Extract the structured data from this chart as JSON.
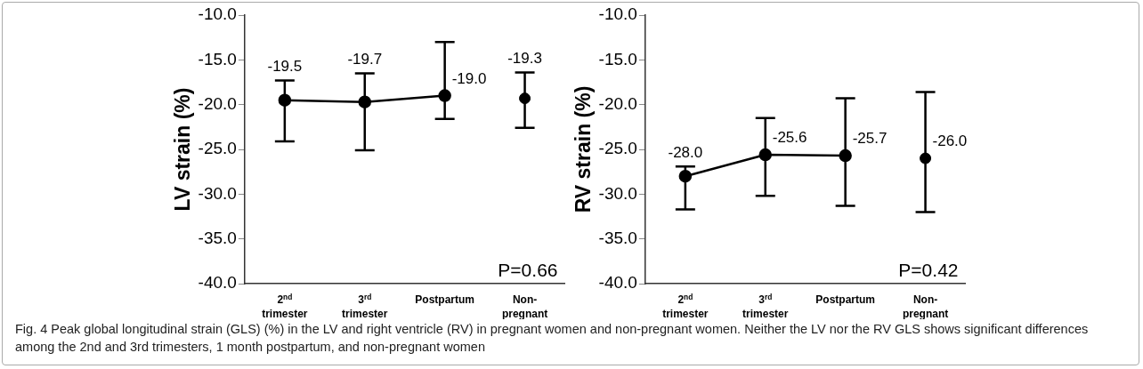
{
  "chart_data": [
    {
      "type": "line",
      "ylabel": "LV strain (%)",
      "categories": [
        "2$^{nd}$ trimester",
        "3$^{rd}$ trimester",
        "Postpartum",
        "Non-pregnant"
      ],
      "series": [
        {
          "color": "#000000",
          "values": [
            -19.5,
            -19.7,
            -19.0,
            null
          ],
          "errors": [
            [
              -24.1,
              -17.3
            ],
            [
              -25.1,
              -16.5
            ],
            [
              -21.6,
              -13.0
            ],
            null
          ],
          "value_labels": [
            "-19.5",
            "-19.7",
            "-19.0",
            null
          ]
        },
        {
          "type": "scatter",
          "color": "#000000",
          "values": [
            null,
            null,
            null,
            -19.3
          ],
          "errors": [
            null,
            null,
            null,
            [
              -22.6,
              -16.4
            ]
          ],
          "value_labels": [
            null,
            null,
            null,
            "-19.3"
          ]
        }
      ],
      "ylim": [
        -40,
        -10
      ],
      "yticks": [
        {
          "value": -40,
          "label": "-40.0"
        },
        {
          "value": -35,
          "label": "-35.0"
        },
        {
          "value": -30,
          "label": "-30.0"
        },
        {
          "value": -25,
          "label": "-25.0"
        },
        {
          "value": -20,
          "label": "-20.0"
        },
        {
          "value": -15,
          "label": "-15.0"
        },
        {
          "value": -10,
          "label": "-10.0"
        }
      ],
      "marker": "circle",
      "line_style": "solid",
      "annotations": [
        "P=0.66",
        "Fig. 4 Peak global longitudinal strain (GLS) (%) in the LV and right ventricle (RV) in pregnant women and non-pregnant women. Neither the LV nor the RV GLS shows significant differences among the 2nd and 3rd trimesters, 1 month postpartum, and non-pregnant women"
      ]
    },
    {
      "type": "line",
      "ylabel": "RV strain (%)",
      "categories": [
        "2$^{nd}$ trimester",
        "3$^{rd}$ trimester",
        "Postpartum",
        "Non-pregnant"
      ],
      "series": [
        {
          "color": "#000000",
          "values": [
            -28.0,
            -25.6,
            -25.7,
            null
          ],
          "errors": [
            [
              -31.7,
              -26.9
            ],
            [
              -30.2,
              -21.5
            ],
            [
              -31.3,
              -19.3
            ],
            null
          ],
          "value_labels": [
            "-28.0",
            "-25.6",
            "-25.7",
            null
          ]
        },
        {
          "type": "scatter",
          "color": "#000000",
          "values": [
            null,
            null,
            null,
            -26.0
          ],
          "errors": [
            null,
            null,
            null,
            [
              -32.0,
              -18.6
            ]
          ],
          "value_labels": [
            null,
            null,
            null,
            "-26.0"
          ]
        }
      ],
      "ylim": [
        -40,
        -10
      ],
      "yticks": [
        {
          "value": -40,
          "label": "-40.0"
        },
        {
          "value": -35,
          "label": "-35.0"
        },
        {
          "value": -30,
          "label": "-30.0"
        },
        {
          "value": -25,
          "label": "-25.0"
        },
        {
          "value": -20,
          "label": "-20.0"
        },
        {
          "value": -15,
          "label": "-15.0"
        },
        {
          "value": -10,
          "label": "-10.0"
        }
      ],
      "marker": "circle",
      "line_style": "solid",
      "annotations": [
        "P=0.42"
      ]
    }
  ]
}
